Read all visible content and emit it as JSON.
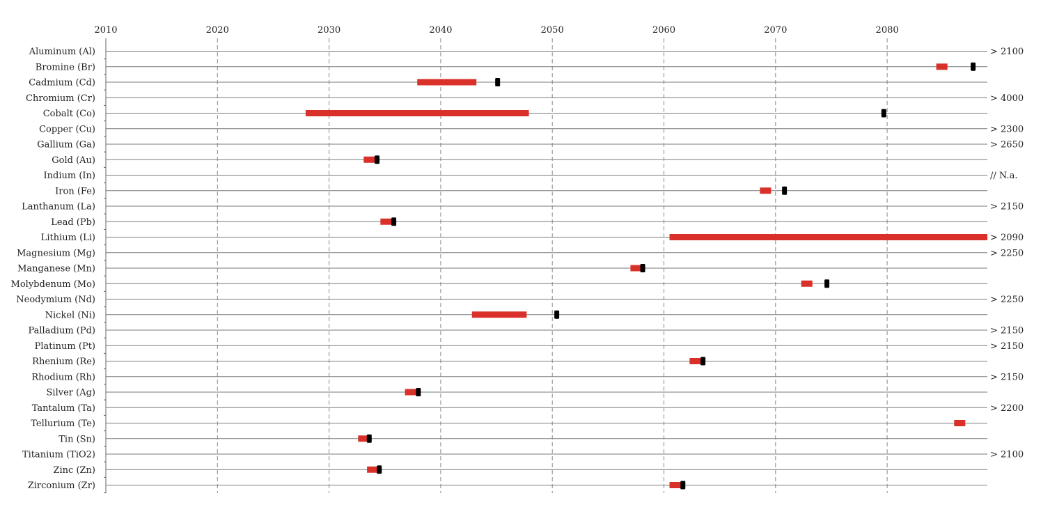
{
  "chart_data": {
    "type": "range-timeline",
    "x_range": [
      2010,
      2089
    ],
    "x_ticks": [
      2010,
      2020,
      2030,
      2040,
      2050,
      2060,
      2070,
      2080
    ],
    "colors": {
      "range": "#d9302a",
      "marker": "#000000",
      "grid": "#888888",
      "row_line": "#7a7a7a"
    },
    "rows": [
      {
        "label": "Aluminum (Al)",
        "range": null,
        "marker": null,
        "note": "> 2100"
      },
      {
        "label": "Bromine (Br)",
        "range": [
          2084.4,
          2085.4
        ],
        "marker": 2087.7,
        "note": ""
      },
      {
        "label": "Cadmium (Cd)",
        "range": [
          2037.9,
          2043.2
        ],
        "marker": 2045.1,
        "note": ""
      },
      {
        "label": "Chromium (Cr)",
        "range": null,
        "marker": null,
        "note": "> 4000"
      },
      {
        "label": "Cobalt (Co)",
        "range": [
          2027.9,
          2047.9
        ],
        "marker": 2079.7,
        "note": ""
      },
      {
        "label": "Copper (Cu)",
        "range": null,
        "marker": null,
        "note": "> 2300"
      },
      {
        "label": "Gallium (Ga)",
        "range": null,
        "marker": null,
        "note": "> 2650"
      },
      {
        "label": "Gold (Au)",
        "range": [
          2033.1,
          2034.1
        ],
        "marker": 2034.3,
        "note": ""
      },
      {
        "label": "Indium (In)",
        "range": null,
        "marker": null,
        "note": "// N.a."
      },
      {
        "label": "Iron (Fe)",
        "range": [
          2068.6,
          2069.6
        ],
        "marker": 2070.8,
        "note": ""
      },
      {
        "label": "Lanthanum (La)",
        "range": null,
        "marker": null,
        "note": "> 2150"
      },
      {
        "label": "Lead (Pb)",
        "range": [
          2034.6,
          2035.6
        ],
        "marker": 2035.8,
        "note": ""
      },
      {
        "label": "Lithium (Li)",
        "range": [
          2060.5,
          2089.0
        ],
        "marker": null,
        "note": "> 2090"
      },
      {
        "label": "Magnesium (Mg)",
        "range": null,
        "marker": null,
        "note": "> 2250"
      },
      {
        "label": "Manganese (Mn)",
        "range": [
          2057.0,
          2058.0
        ],
        "marker": 2058.1,
        "note": ""
      },
      {
        "label": "Molybdenum (Mo)",
        "range": [
          2072.3,
          2073.3
        ],
        "marker": 2074.6,
        "note": ""
      },
      {
        "label": "Neodymium (Nd)",
        "range": null,
        "marker": null,
        "note": "> 2250"
      },
      {
        "label": "Nickel (Ni)",
        "range": [
          2042.8,
          2047.7
        ],
        "marker": 2050.4,
        "note": ""
      },
      {
        "label": "Palladium (Pd)",
        "range": null,
        "marker": null,
        "note": "> 2150"
      },
      {
        "label": "Platinum (Pt)",
        "range": null,
        "marker": null,
        "note": "> 2150"
      },
      {
        "label": "Rhenium (Re)",
        "range": [
          2062.3,
          2063.3
        ],
        "marker": 2063.5,
        "note": ""
      },
      {
        "label": "Rhodium (Rh)",
        "range": null,
        "marker": null,
        "note": "> 2150"
      },
      {
        "label": "Silver (Ag)",
        "range": [
          2036.8,
          2037.8
        ],
        "marker": 2038.0,
        "note": ""
      },
      {
        "label": "Tantalum (Ta)",
        "range": null,
        "marker": null,
        "note": "> 2200"
      },
      {
        "label": "Tellurium (Te)",
        "range": [
          2086.0,
          2087.0
        ],
        "marker": null,
        "note": ""
      },
      {
        "label": "Tin (Sn)",
        "range": [
          2032.6,
          2033.6
        ],
        "marker": 2033.6,
        "note": ""
      },
      {
        "label": "Titanium (TiO2)",
        "range": null,
        "marker": null,
        "note": "> 2100"
      },
      {
        "label": "Zinc (Zn)",
        "range": [
          2033.4,
          2034.4
        ],
        "marker": 2034.5,
        "note": ""
      },
      {
        "label": "Zirconium (Zr)",
        "range": [
          2060.5,
          2061.5
        ],
        "marker": 2061.7,
        "note": ""
      }
    ]
  }
}
